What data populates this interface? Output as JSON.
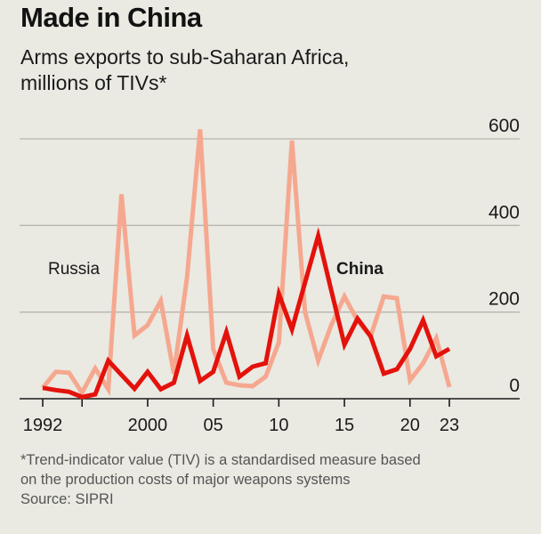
{
  "header": {
    "title": "Made in China",
    "subtitle_line1": "Arms exports to sub-Saharan Africa,",
    "subtitle_line2": "millions of TIVs*"
  },
  "footnote": {
    "line1": "*Trend-indicator value (TIV) is a standardised measure based",
    "line2": "on the production costs of major weapons systems",
    "source": "Source: SIPRI"
  },
  "colors": {
    "china": "#e3120b",
    "russia": "#f5a88f",
    "gridline": "#b7b5ad",
    "axis": "#1a1a1a"
  },
  "chart_data": {
    "type": "line",
    "title": "Made in China",
    "subtitle": "Arms exports to sub-Saharan Africa, millions of TIVs*",
    "xlabel": "",
    "ylabel": "millions of TIVs",
    "xlim": [
      1992,
      2023
    ],
    "ylim": [
      0,
      600
    ],
    "y_ticks": [
      0,
      200,
      400,
      600
    ],
    "y_tick_labels": [
      "0",
      "200",
      "400",
      "600"
    ],
    "x_ticks": [
      1992,
      1995,
      2000,
      2005,
      2010,
      2015,
      2020,
      2023
    ],
    "x_tick_labels": [
      "1992",
      "",
      "2000",
      "05",
      "10",
      "15",
      "20",
      "23"
    ],
    "grid": true,
    "y_axis_side": "right",
    "legend": "inline labels",
    "x": [
      1992,
      1993,
      1994,
      1995,
      1996,
      1997,
      1998,
      1999,
      2000,
      2001,
      2002,
      2003,
      2004,
      2005,
      2006,
      2007,
      2008,
      2009,
      2010,
      2011,
      2012,
      2013,
      2014,
      2015,
      2016,
      2017,
      2018,
      2019,
      2020,
      2021,
      2022,
      2023
    ],
    "series": [
      {
        "name": "Russia",
        "label": "Russia",
        "values": [
          25,
          62,
          60,
          14,
          70,
          22,
          472,
          146,
          170,
          226,
          58,
          280,
          622,
          115,
          37,
          31,
          29,
          51,
          130,
          596,
          200,
          88,
          170,
          236,
          180,
          144,
          236,
          232,
          43,
          82,
          140,
          27
        ]
      },
      {
        "name": "China",
        "label": "China",
        "values": [
          25,
          20,
          16,
          4,
          10,
          88,
          55,
          23,
          62,
          22,
          37,
          146,
          41,
          62,
          154,
          51,
          74,
          82,
          242,
          160,
          268,
          376,
          250,
          125,
          185,
          144,
          58,
          68,
          115,
          181,
          98,
          115
        ]
      }
    ]
  }
}
